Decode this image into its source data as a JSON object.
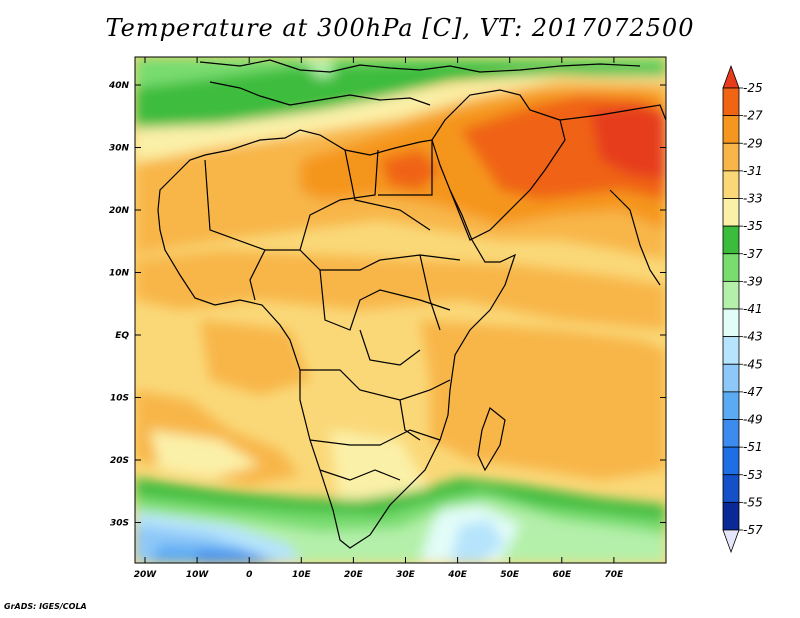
{
  "title": "Temperature at 300hPa [C], VT: 2017072500",
  "credit": "GrADS: IGES/COLA",
  "lat_labels": [
    "40N",
    "30N",
    "20N",
    "10N",
    "EQ",
    "10S",
    "20S",
    "30S"
  ],
  "lon_labels": [
    "20W",
    "10W",
    "0",
    "10E",
    "20E",
    "30E",
    "40E",
    "50E",
    "60E",
    "70E"
  ],
  "colorbar": {
    "labels": [
      "-25",
      "-27",
      "-29",
      "-31",
      "-33",
      "-35",
      "-37",
      "-39",
      "-41",
      "-43",
      "-45",
      "-47",
      "-49",
      "-51",
      "-53",
      "-55",
      "-57"
    ],
    "colors": [
      "#e63c1c",
      "#f06414",
      "#f5961e",
      "#f8b648",
      "#fad878",
      "#fbf0a8",
      "#3cbc3c",
      "#78dc6e",
      "#b4f0aa",
      "#e2fcf8",
      "#b6e4fc",
      "#8ec8f8",
      "#5aaaf4",
      "#3c8cf0",
      "#1e6ee6",
      "#1450c8",
      "#0a2896",
      "#e6e6fa"
    ]
  },
  "legend": {
    "selected": "temperature-colorbar"
  }
}
